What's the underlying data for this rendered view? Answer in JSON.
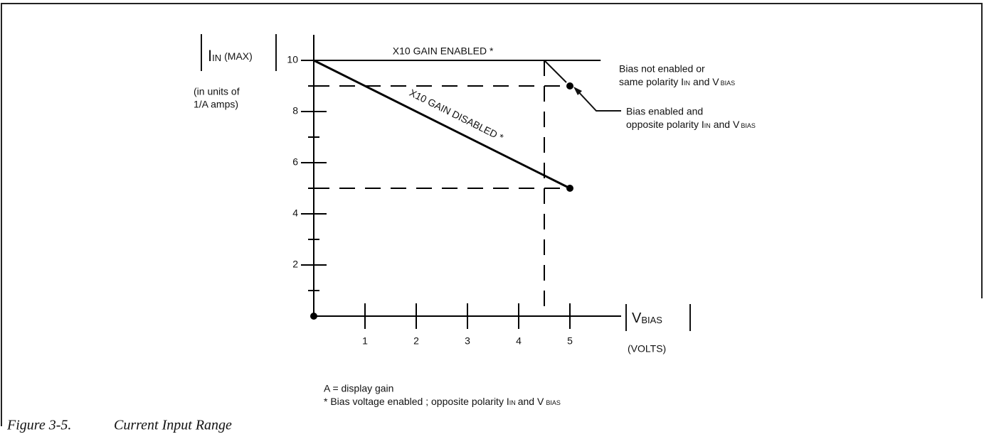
{
  "chart_data": {
    "type": "line",
    "xlim": [
      0,
      6
    ],
    "ylim": [
      0,
      11
    ],
    "xticks": [
      1,
      2,
      3,
      4,
      5
    ],
    "yticks": [
      2,
      4,
      6,
      8,
      10
    ],
    "yminor": [
      1,
      3,
      5,
      7,
      9
    ],
    "color": "#000000",
    "series": [
      {
        "name": "X10 GAIN ENABLED *",
        "x": [
          0,
          5.6
        ],
        "values": [
          10,
          10
        ]
      },
      {
        "name": "X10 GAIN DISABLED *",
        "x": [
          0,
          5
        ],
        "values": [
          10,
          5
        ]
      }
    ],
    "dashed": [
      {
        "x": [
          0,
          5
        ],
        "values": [
          9,
          9
        ]
      },
      {
        "x": [
          0,
          5
        ],
        "values": [
          5,
          5
        ]
      },
      {
        "x": [
          4.5,
          4.5
        ],
        "values": [
          10,
          0
        ]
      }
    ],
    "points": {
      "x": [
        5,
        5,
        0
      ],
      "values": [
        9,
        5,
        0
      ]
    },
    "y_label": {
      "main": "I",
      "sub": "IN",
      "suffix": "(MAX)"
    },
    "y_note": [
      "(in units of",
      "1/A amps)"
    ],
    "x_label": {
      "main": "V",
      "sub": "BIAS",
      "units": "(VOLTS)"
    },
    "annotation_top": {
      "line1": "Bias not enabled or",
      "a": "same polarity I",
      "sub1": "IN",
      "b": "and V",
      "sub2": "BIAS"
    },
    "annotation_bottom": {
      "line1": "Bias enabled and",
      "a": "opposite polarity I",
      "sub1": "IN",
      "b": "and V",
      "sub2": "BIAS"
    },
    "footnotes": {
      "line1": "A = display gain",
      "a": "*  Bias voltage enabled ;  opposite polarity I",
      "sub1": "IN",
      "b": "and V",
      "sub2": "BIAS"
    },
    "caption": {
      "number": "Figure 3-5.",
      "title": "Current Input Range"
    }
  }
}
